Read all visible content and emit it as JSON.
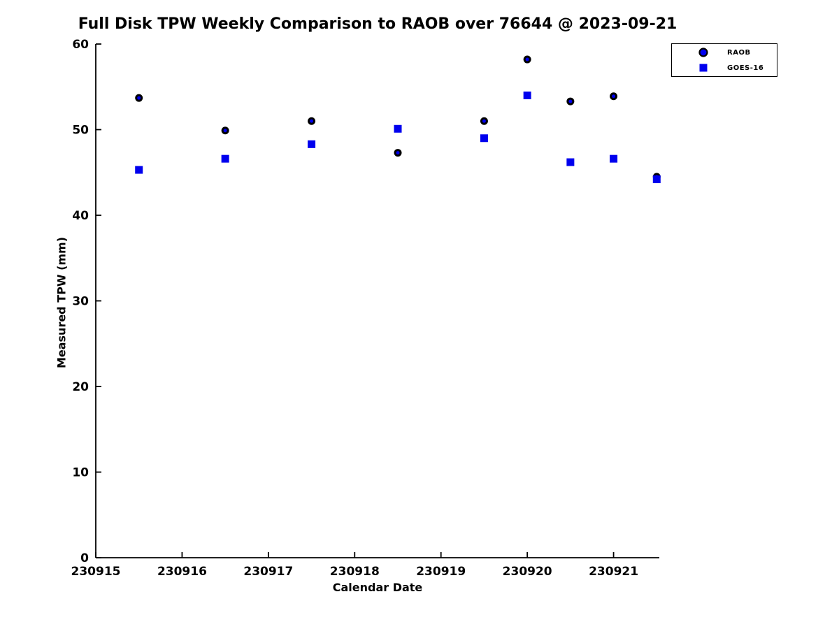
{
  "title": "Full Disk TPW Weekly Comparison to RAOB over 76644 @ 2023-09-21",
  "colors": {
    "raob_edge": "#000000",
    "raob_face": "#0000EE",
    "goes16": "#0000EE",
    "axis": "#000000",
    "background": "#ffffff"
  },
  "legend": {
    "entries": [
      {
        "label": "RAOB",
        "marker": "circle"
      },
      {
        "label": "GOES-16",
        "marker": "square"
      }
    ]
  },
  "chart_data": {
    "type": "scatter",
    "title": "Full Disk TPW Weekly Comparison to RAOB over 76644 @ 2023-09-21",
    "xlabel": "Calendar Date",
    "ylabel": "Measured TPW (mm)",
    "xlim": [
      230915,
      230921.53
    ],
    "ylim": [
      0,
      60
    ],
    "x_ticks": [
      230915,
      230916,
      230917,
      230918,
      230919,
      230920,
      230921
    ],
    "y_ticks": [
      0,
      10,
      20,
      30,
      40,
      50,
      60
    ],
    "grid": false,
    "legend_position": "top-right-outside",
    "x": [
      230915.5,
      230916.5,
      230917.5,
      230918.5,
      230919.5,
      230920.0,
      230920.5,
      230921.0,
      230921.5
    ],
    "series": [
      {
        "name": "RAOB",
        "marker": "circle",
        "values": [
          53.7,
          49.9,
          51.0,
          47.3,
          51.0,
          58.2,
          53.3,
          53.9,
          44.5
        ]
      },
      {
        "name": "GOES-16",
        "marker": "square",
        "values": [
          45.3,
          46.6,
          48.3,
          50.1,
          49.0,
          54.0,
          46.2,
          46.6,
          44.2
        ]
      }
    ]
  }
}
